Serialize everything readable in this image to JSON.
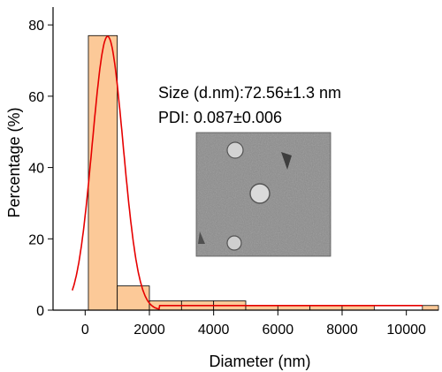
{
  "chart_data": {
    "type": "bar",
    "xlabel": "Diameter (nm)",
    "ylabel": "Percentage (%)",
    "xlim": [
      -1000,
      11000
    ],
    "ylim": [
      0,
      85
    ],
    "xticks": [
      0,
      2000,
      4000,
      6000,
      8000,
      10000
    ],
    "yticks": [
      0,
      20,
      40,
      60,
      80
    ],
    "grid": false,
    "bins": [
      {
        "start": 100,
        "end": 1000,
        "value": 77
      },
      {
        "start": 1000,
        "end": 2000,
        "value": 6.8
      },
      {
        "start": 2000,
        "end": 3000,
        "value": 2.6
      },
      {
        "start": 3000,
        "end": 4000,
        "value": 2.6
      },
      {
        "start": 4000,
        "end": 5000,
        "value": 2.6
      },
      {
        "start": 5000,
        "end": 6000,
        "value": 1.3
      },
      {
        "start": 6000,
        "end": 7000,
        "value": 1.3
      },
      {
        "start": 7000,
        "end": 8000,
        "value": 1.3
      },
      {
        "start": 8000,
        "end": 9000,
        "value": 1.3
      },
      {
        "start": 10500,
        "end": 11000,
        "value": 1.3
      }
    ],
    "fit_curve": {
      "type": "gaussian",
      "mean": 700,
      "sigma": 480,
      "peak": 76.8,
      "x_start": -400,
      "x_end": 10500,
      "tail_start": 2300,
      "tail_value": 1.3
    },
    "annotations": [
      "Size (d.nm):72.56±1.3 nm",
      "PDI: 0.087±0.006"
    ],
    "colors": {
      "bar_fill": "#fcc998",
      "bar_stroke": "#000000",
      "fit_line": "#e60000",
      "axis": "#000000"
    },
    "inset": {
      "kind": "TEM micrograph",
      "background": "#8c8c8c"
    }
  }
}
